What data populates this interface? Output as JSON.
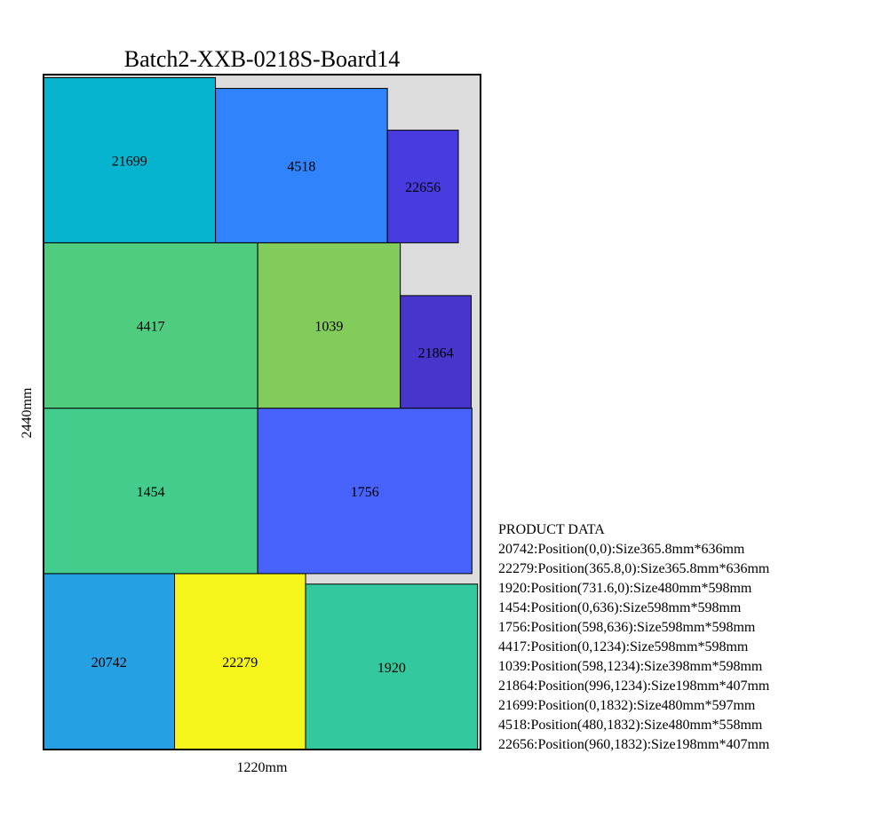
{
  "title": "Batch2-XXB-0218S-Board14",
  "x_label": "1220mm",
  "y_label": "2440mm",
  "board": {
    "width_mm": 1220,
    "height_mm": 2440
  },
  "pieces": [
    {
      "id": "20742",
      "x": 0,
      "y": 0,
      "w": 365.8,
      "h": 636,
      "color": "#25a0e2"
    },
    {
      "id": "22279",
      "x": 365.8,
      "y": 0,
      "w": 365.8,
      "h": 636,
      "color": "#f5f51c"
    },
    {
      "id": "1920",
      "x": 731.6,
      "y": 0,
      "w": 480,
      "h": 598,
      "color": "#34c89e"
    },
    {
      "id": "1454",
      "x": 0,
      "y": 636,
      "w": 598,
      "h": 598,
      "color": "#44cc8d"
    },
    {
      "id": "1756",
      "x": 598,
      "y": 636,
      "w": 598,
      "h": 598,
      "color": "#4863fb"
    },
    {
      "id": "4417",
      "x": 0,
      "y": 1234,
      "w": 598,
      "h": 598,
      "color": "#50cc7e"
    },
    {
      "id": "1039",
      "x": 598,
      "y": 1234,
      "w": 398,
      "h": 598,
      "color": "#81cc5b"
    },
    {
      "id": "21864",
      "x": 996,
      "y": 1234,
      "w": 198,
      "h": 407,
      "color": "#4835cc"
    },
    {
      "id": "21699",
      "x": 0,
      "y": 1832,
      "w": 480,
      "h": 597,
      "color": "#06b4cf"
    },
    {
      "id": "4518",
      "x": 480,
      "y": 1832,
      "w": 480,
      "h": 558,
      "color": "#3083fb"
    },
    {
      "id": "22656",
      "x": 960,
      "y": 1832,
      "w": 198,
      "h": 407,
      "color": "#483be0"
    }
  ],
  "product_data": {
    "heading": "PRODUCT DATA",
    "lines": [
      "20742:Position(0,0):Size365.8mm*636mm",
      "22279:Position(365.8,0):Size365.8mm*636mm",
      "1920:Position(731.6,0):Size480mm*598mm",
      "1454:Position(0,636):Size598mm*598mm",
      "1756:Position(598,636):Size598mm*598mm",
      "4417:Position(0,1234):Size598mm*598mm",
      "1039:Position(598,1234):Size398mm*598mm",
      "21864:Position(996,1234):Size198mm*407mm",
      "21699:Position(0,1832):Size480mm*597mm",
      "4518:Position(480,1832):Size480mm*558mm",
      "22656:Position(960,1832):Size198mm*407mm"
    ]
  }
}
